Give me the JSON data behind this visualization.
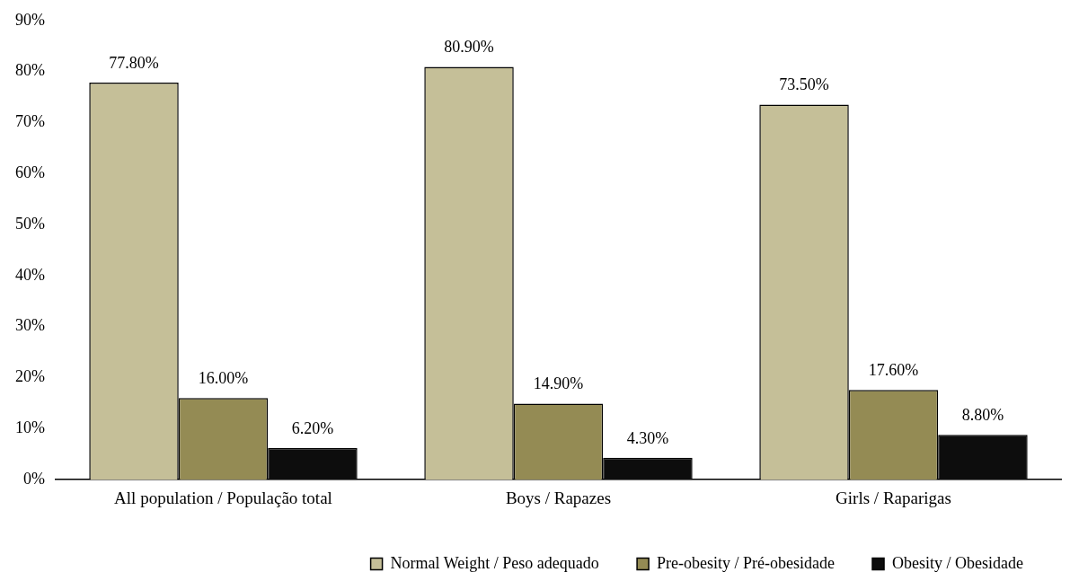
{
  "chart_data": {
    "type": "bar",
    "categories": [
      "All population / População total",
      "Boys / Rapazes",
      "Girls / Raparigas"
    ],
    "series": [
      {
        "name": "Normal Weight / Peso adequado",
        "color": "#c5bf98",
        "values": [
          77.8,
          80.9,
          73.5
        ],
        "value_labels": [
          "77.80%",
          "80.90%",
          "73.50%"
        ]
      },
      {
        "name": "Pre-obesity / Pré-obesidade",
        "color": "#948b54",
        "values": [
          16.0,
          14.9,
          17.6
        ],
        "value_labels": [
          "16.00%",
          "14.90%",
          "17.60%"
        ]
      },
      {
        "name": "Obesity / Obesidade",
        "color": "#0d0d0d",
        "values": [
          6.2,
          4.3,
          8.8
        ],
        "value_labels": [
          "6.20%",
          "4.30%",
          "8.80%"
        ]
      }
    ],
    "ylim": [
      0,
      90
    ],
    "yticks": [
      {
        "value": 0,
        "label": "0%"
      },
      {
        "value": 10,
        "label": "10%"
      },
      {
        "value": 20,
        "label": "20%"
      },
      {
        "value": 30,
        "label": "30%"
      },
      {
        "value": 40,
        "label": "40%"
      },
      {
        "value": 50,
        "label": "50%"
      },
      {
        "value": 60,
        "label": "60%"
      },
      {
        "value": 70,
        "label": "70%"
      },
      {
        "value": 80,
        "label": "80%"
      },
      {
        "value": 90,
        "label": "90%"
      }
    ],
    "grid": false,
    "legend": "bottom right"
  }
}
